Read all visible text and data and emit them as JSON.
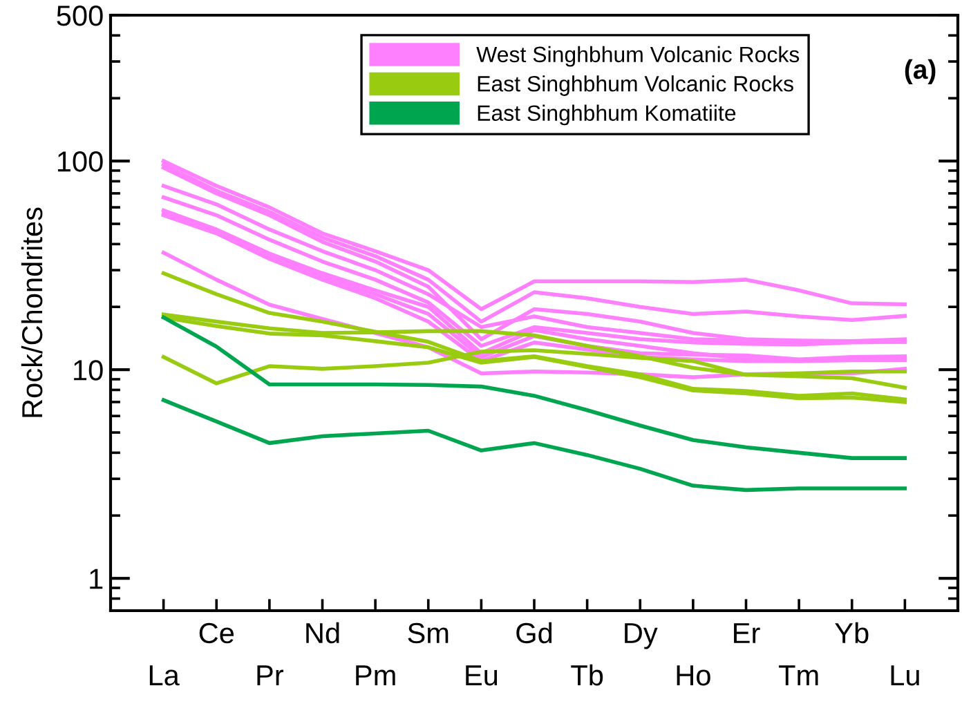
{
  "chart_data": {
    "type": "line",
    "ylabel": "Rock/Chondrites",
    "categories": [
      "La",
      "Ce",
      "Pr",
      "Nd",
      "Pm",
      "Sm",
      "Eu",
      "Gd",
      "Tb",
      "Dy",
      "Ho",
      "Er",
      "Tm",
      "Yb",
      "Lu"
    ],
    "log": "y",
    "ylim": [
      0.7,
      500
    ],
    "yticks": [
      1,
      10,
      100,
      500
    ],
    "grid": false,
    "legend": "top",
    "marker": "none",
    "line_style": "solid",
    "annotations": [
      "(a)"
    ],
    "series": [
      {
        "name": "West Singhbhum Volcanic Rocks",
        "color": "#ff80ff",
        "values": [
          100,
          76,
          60,
          45,
          37,
          30,
          19.5,
          26.5,
          26.5,
          26.5,
          26.3,
          27,
          24,
          20.8,
          20.6
        ]
      },
      {
        "color": "#ff80ff",
        "values": [
          96,
          72,
          57,
          43,
          35,
          27,
          17,
          23.5,
          22,
          20,
          18.5,
          19,
          18,
          17.3,
          18.1
        ]
      },
      {
        "color": "#ff80ff",
        "values": [
          93,
          70,
          55,
          41,
          33,
          25,
          14,
          19.5,
          18.5,
          17,
          15,
          14,
          13.8,
          13.7,
          14
        ]
      },
      {
        "color": "#ff80ff",
        "values": [
          76,
          62,
          47,
          37,
          30,
          23,
          16,
          18,
          16,
          15,
          14,
          13.8,
          13.6,
          13.7,
          13.6
        ]
      },
      {
        "color": "#ff80ff",
        "values": [
          67,
          55,
          42,
          33,
          27,
          21,
          13,
          16,
          15,
          14,
          13.5,
          13.3,
          13.2,
          13.5,
          13.6
        ]
      },
      {
        "color": "#ff80ff",
        "values": [
          58,
          47,
          36,
          29,
          24,
          20,
          12,
          15.5,
          14,
          13,
          12,
          11.3,
          11,
          11.1,
          11.1
        ]
      },
      {
        "color": "#ff80ff",
        "values": [
          56,
          46,
          35,
          28,
          23,
          18.5,
          11.5,
          14.5,
          13,
          12,
          11.8,
          11.7,
          11.2,
          11.5,
          11.6
        ]
      },
      {
        "color": "#ff80ff",
        "values": [
          55,
          45,
          34,
          27,
          22,
          17,
          11,
          13.5,
          12.5,
          11.5,
          11.2,
          11,
          11,
          11.2,
          11.3
        ]
      },
      {
        "color": "#ff80ff",
        "values": [
          36.4,
          27,
          20.5,
          17.5,
          15,
          12.8,
          9.6,
          9.8,
          9.7,
          9.5,
          9.2,
          9.5,
          9.6,
          9.6,
          10.1
        ]
      },
      {
        "name": "East Singhbhum Volcanic Rocks",
        "color": "#99cc11",
        "values": [
          18.4,
          17,
          15.8,
          15,
          15.1,
          15.3,
          15.3,
          14.6,
          13,
          11.6,
          10.2,
          9.45,
          9.3,
          9.1,
          8.2
        ]
      },
      {
        "color": "#99cc11",
        "values": [
          11.5,
          8.6,
          10.4,
          10.1,
          10.4,
          10.8,
          12.2,
          12.4,
          11.9,
          11.4,
          11,
          9.45,
          9.6,
          9.8,
          9.8
        ]
      },
      {
        "color": "#99cc11",
        "values": [
          29,
          23,
          18.7,
          17,
          15.2,
          13.6,
          11,
          11.6,
          10.4,
          9.5,
          8.1,
          7.9,
          7.5,
          7.7,
          7.2
        ]
      },
      {
        "color": "#99cc11",
        "values": [
          17.8,
          16.2,
          14.9,
          14.6,
          13.7,
          12.8,
          10.8,
          11.5,
          10.3,
          9.2,
          7.95,
          7.7,
          7.3,
          7.35,
          7
        ]
      },
      {
        "name": "East Singhbhum Komatiite",
        "color": "#00a550",
        "values": [
          17.8,
          12.9,
          8.5,
          8.5,
          8.5,
          8.45,
          8.3,
          7.5,
          6.4,
          5.4,
          4.6,
          4.25,
          4,
          3.77,
          3.77
        ]
      },
      {
        "color": "#00a550",
        "values": [
          7.15,
          5.65,
          4.45,
          4.8,
          4.95,
          5.1,
          4.1,
          4.45,
          3.9,
          3.35,
          2.78,
          2.65,
          2.7,
          2.7,
          2.7
        ]
      }
    ]
  }
}
